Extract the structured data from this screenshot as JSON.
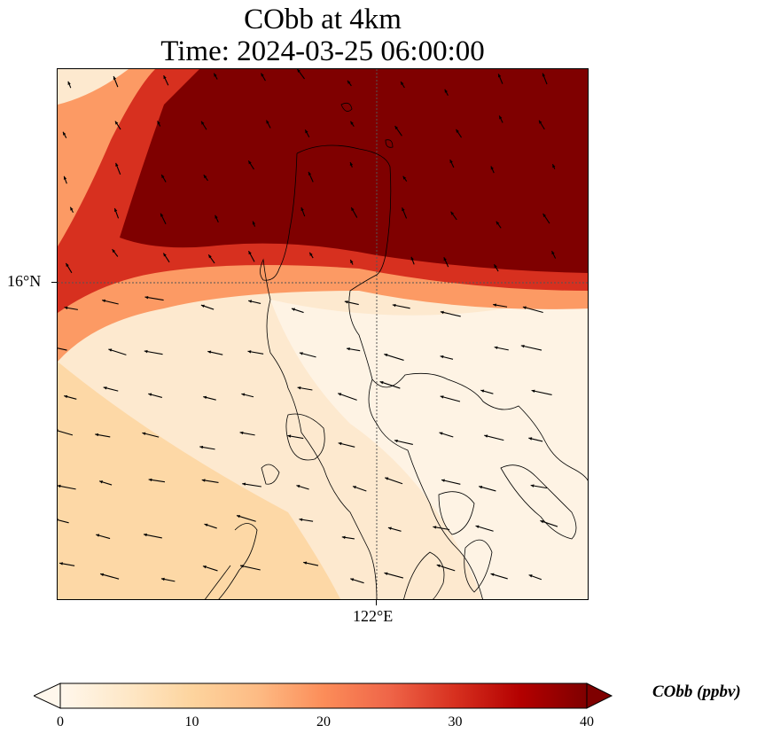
{
  "map": {
    "title": "CObb at 4km",
    "subtitle": "Time: 2024-03-25 06:00:00",
    "lat_label": "16°N",
    "lon_label": "122°E"
  },
  "colorbar": {
    "label": "CObb (ppbv)",
    "ticks": [
      "0",
      "10",
      "20",
      "30",
      "40"
    ],
    "min": 0,
    "max": 40,
    "extend": "both",
    "colormap": [
      "#fff7ec",
      "#fee8c8",
      "#fdd49e",
      "#fdbb84",
      "#fc8d59",
      "#ef6548",
      "#d7301f",
      "#b30000",
      "#7f0000"
    ]
  }
}
